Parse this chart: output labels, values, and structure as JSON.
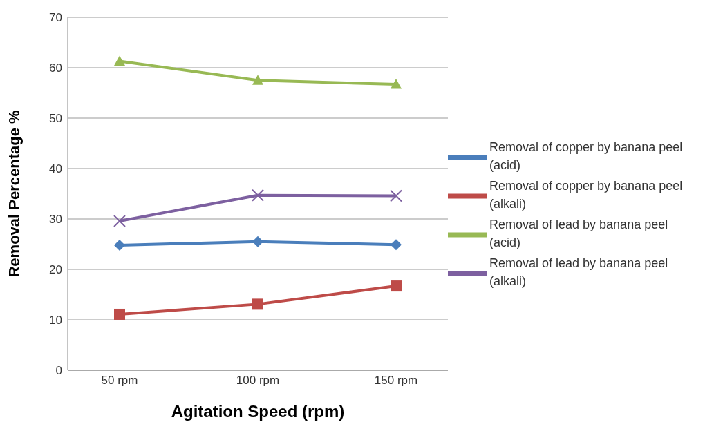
{
  "chart_data": {
    "type": "line",
    "xlabel": "Agitation Speed (rpm)",
    "ylabel": "Removal Percentage %",
    "categories": [
      "50 rpm",
      "100 rpm",
      "150 rpm"
    ],
    "series": [
      {
        "name": "Removal of copper by banana peel (acid)",
        "color": "#4a7ebb",
        "marker": "diamond",
        "values": [
          24.8,
          25.5,
          24.9
        ]
      },
      {
        "name": "Removal of copper by banana peel (alkali)",
        "color": "#be4b48",
        "marker": "square",
        "values": [
          11.1,
          13.1,
          16.7
        ]
      },
      {
        "name": "Removal of lead by banana peel (acid)",
        "color": "#98b954",
        "marker": "triangle",
        "values": [
          61.3,
          57.5,
          56.7
        ]
      },
      {
        "name": "Removal of lead by banana peel (alkali)",
        "color": "#7d60a0",
        "marker": "cross",
        "values": [
          29.6,
          34.7,
          34.6
        ]
      }
    ],
    "ylim": [
      0,
      70
    ],
    "yticks": [
      0,
      10,
      20,
      30,
      40,
      50,
      60,
      70
    ],
    "grid": "y",
    "legend": "right",
    "line_style": "solid"
  }
}
